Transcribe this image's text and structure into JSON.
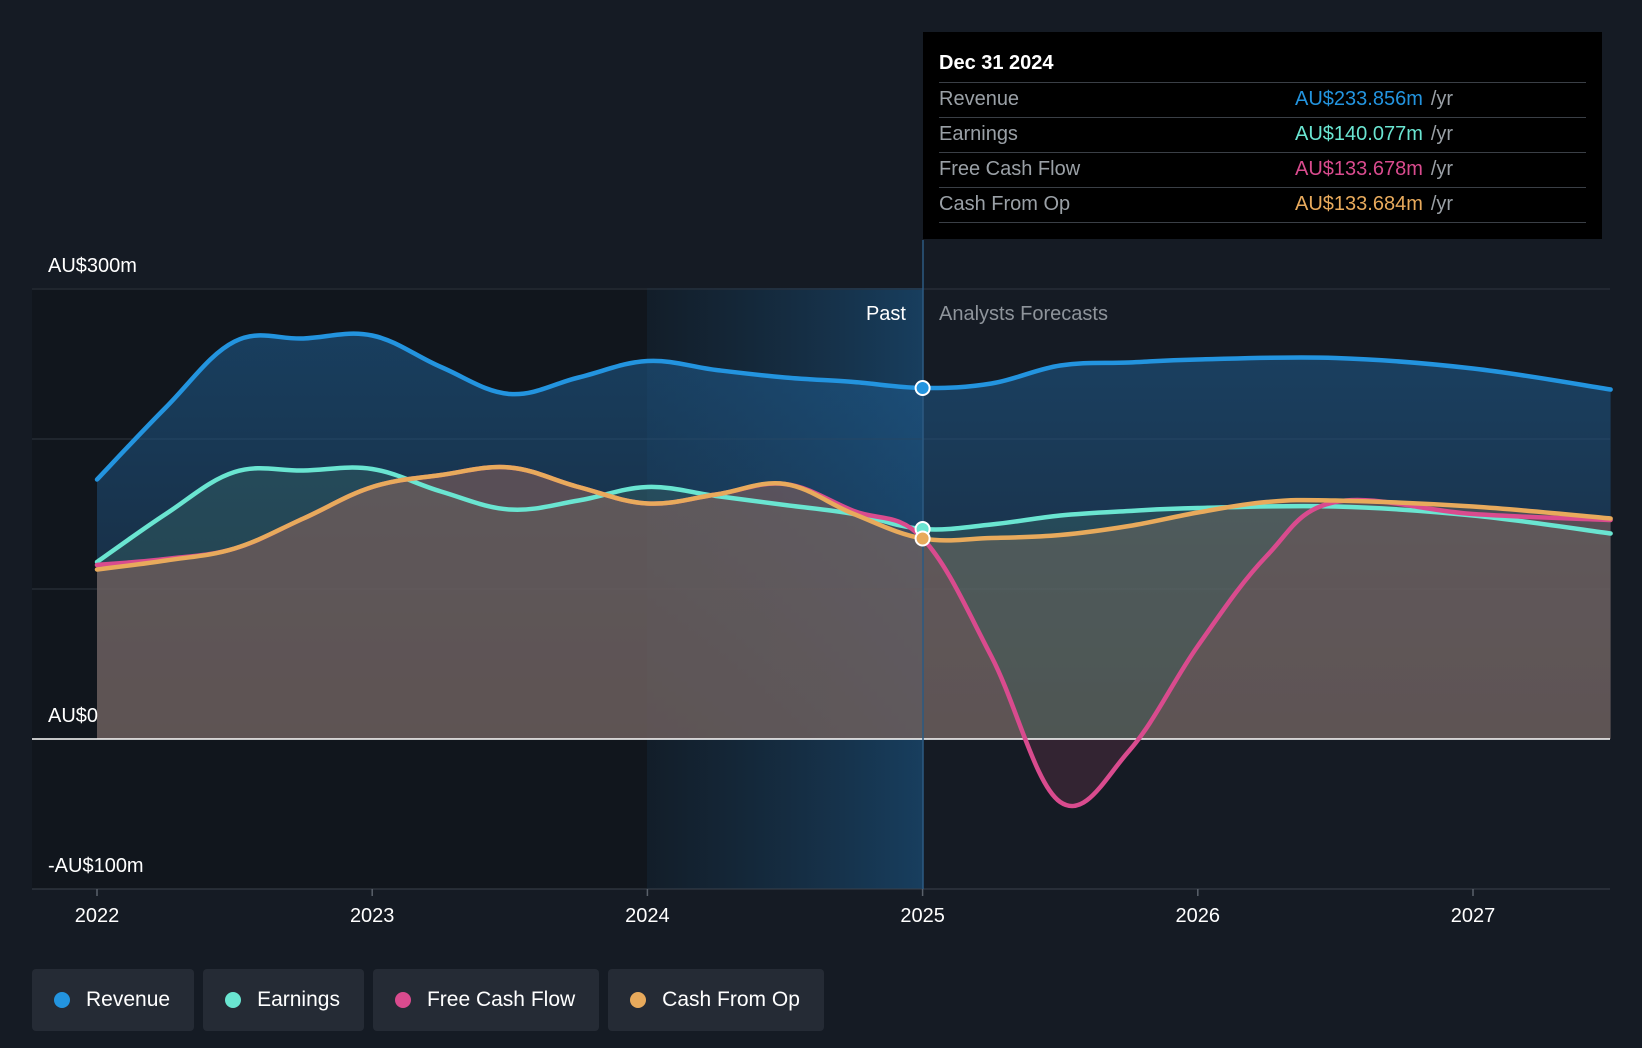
{
  "chart_data": {
    "type": "area",
    "y_axis": {
      "labels": [
        "AU$300m",
        "AU$0",
        "-AU$100m"
      ],
      "ylim": [
        -100,
        300
      ]
    },
    "x_axis": {
      "ticks": [
        "2022",
        "2023",
        "2024",
        "2025",
        "2026",
        "2027"
      ]
    },
    "region_labels": {
      "past": "Past",
      "forecast": "Analysts Forecasts"
    },
    "divider_x": 2025.0,
    "grid": true,
    "series": [
      {
        "name": "Revenue",
        "color": "#2394df",
        "points": [
          [
            2022.0,
            173
          ],
          [
            2022.25,
            221
          ],
          [
            2022.5,
            265
          ],
          [
            2022.75,
            267
          ],
          [
            2023.0,
            269
          ],
          [
            2023.25,
            248
          ],
          [
            2023.5,
            230
          ],
          [
            2023.75,
            241
          ],
          [
            2024.0,
            252
          ],
          [
            2024.25,
            246
          ],
          [
            2024.5,
            241
          ],
          [
            2024.75,
            238
          ],
          [
            2025.0,
            234
          ],
          [
            2025.25,
            237
          ],
          [
            2025.5,
            249
          ],
          [
            2025.75,
            251
          ],
          [
            2026.0,
            253
          ],
          [
            2026.5,
            254
          ],
          [
            2027.0,
            247
          ],
          [
            2027.5,
            233
          ]
        ]
      },
      {
        "name": "Earnings",
        "color": "#6ae5d1",
        "points": [
          [
            2022.0,
            118
          ],
          [
            2022.25,
            150
          ],
          [
            2022.5,
            178
          ],
          [
            2022.75,
            179
          ],
          [
            2023.0,
            180
          ],
          [
            2023.25,
            165
          ],
          [
            2023.5,
            153
          ],
          [
            2023.75,
            159
          ],
          [
            2024.0,
            168
          ],
          [
            2024.25,
            162
          ],
          [
            2024.5,
            156
          ],
          [
            2024.75,
            150
          ],
          [
            2025.0,
            140
          ],
          [
            2025.25,
            143
          ],
          [
            2025.5,
            149
          ],
          [
            2025.75,
            152
          ],
          [
            2026.0,
            154
          ],
          [
            2026.5,
            155
          ],
          [
            2027.0,
            149
          ],
          [
            2027.5,
            137
          ]
        ]
      },
      {
        "name": "Free Cash Flow",
        "color": "#d94b8e",
        "points": [
          [
            2022.0,
            116
          ],
          [
            2022.25,
            120
          ],
          [
            2022.5,
            127
          ],
          [
            2022.75,
            147
          ],
          [
            2023.0,
            168
          ],
          [
            2023.25,
            176
          ],
          [
            2023.5,
            181
          ],
          [
            2023.75,
            168
          ],
          [
            2024.0,
            157
          ],
          [
            2024.25,
            163
          ],
          [
            2024.5,
            170
          ],
          [
            2024.75,
            152
          ],
          [
            2025.0,
            133.7
          ],
          [
            2025.25,
            55
          ],
          [
            2025.5,
            -42
          ],
          [
            2025.75,
            -8
          ],
          [
            2026.0,
            62
          ],
          [
            2026.25,
            122
          ],
          [
            2026.5,
            158
          ],
          [
            2027.0,
            150
          ],
          [
            2027.5,
            146
          ]
        ]
      },
      {
        "name": "Cash From Op",
        "color": "#e8aa5c",
        "points": [
          [
            2022.0,
            113
          ],
          [
            2022.25,
            119
          ],
          [
            2022.5,
            127
          ],
          [
            2022.75,
            147
          ],
          [
            2023.0,
            168
          ],
          [
            2023.25,
            176
          ],
          [
            2023.5,
            181
          ],
          [
            2023.75,
            168
          ],
          [
            2024.0,
            157
          ],
          [
            2024.25,
            163
          ],
          [
            2024.5,
            170
          ],
          [
            2024.75,
            150
          ],
          [
            2025.0,
            133.7
          ],
          [
            2025.25,
            134
          ],
          [
            2025.5,
            136
          ],
          [
            2025.75,
            142
          ],
          [
            2026.0,
            151
          ],
          [
            2026.25,
            158
          ],
          [
            2026.5,
            159
          ],
          [
            2027.0,
            155
          ],
          [
            2027.5,
            147
          ]
        ]
      }
    ]
  },
  "tooltip": {
    "date": "Dec 31 2024",
    "unit": "/yr",
    "rows": [
      {
        "label": "Revenue",
        "value": "AU$233.856m",
        "color": "#2394df"
      },
      {
        "label": "Earnings",
        "value": "AU$140.077m",
        "color": "#6ae5d1"
      },
      {
        "label": "Free Cash Flow",
        "value": "AU$133.678m",
        "color": "#d94b8e"
      },
      {
        "label": "Cash From Op",
        "value": "AU$133.684m",
        "color": "#e8aa5c"
      }
    ]
  },
  "legend": [
    {
      "label": "Revenue",
      "color": "#2394df"
    },
    {
      "label": "Earnings",
      "color": "#6ae5d1"
    },
    {
      "label": "Free Cash Flow",
      "color": "#d94b8e"
    },
    {
      "label": "Cash From Op",
      "color": "#e8aa5c"
    }
  ]
}
